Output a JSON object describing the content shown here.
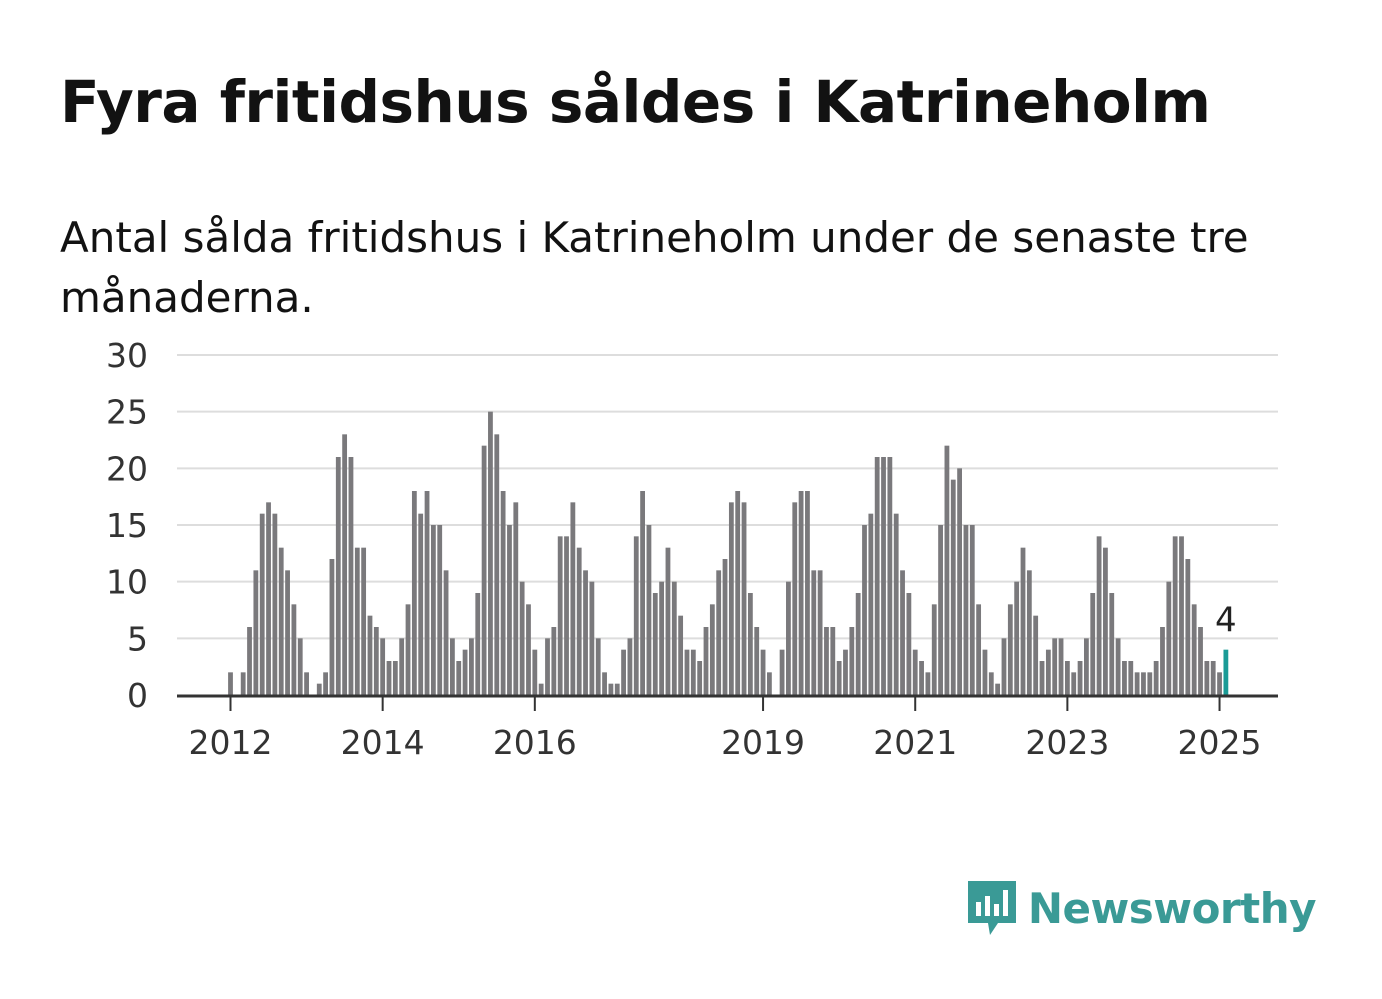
{
  "title": "Fyra fritidshus såldes i Katrineholm",
  "subtitle": "Antal sålda fritidshus i Katrineholm under de senaste tre månaderna.",
  "brand": {
    "name": "Newsworthy",
    "icon": "newsworthy-logo-icon",
    "color": "#3a9a96"
  },
  "chart_data": {
    "type": "bar",
    "title": "",
    "xlabel": "",
    "ylabel": "",
    "ylim": [
      0,
      30
    ],
    "yticks": [
      "0",
      "5",
      "10",
      "15",
      "20",
      "25",
      "30"
    ],
    "xticks": [
      {
        "label": "2012",
        "index": 0
      },
      {
        "label": "2014",
        "index": 24
      },
      {
        "label": "2016",
        "index": 48
      },
      {
        "label": "2019",
        "index": 84
      },
      {
        "label": "2021",
        "index": 108
      },
      {
        "label": "2023",
        "index": 132
      },
      {
        "label": "2025",
        "index": 156
      }
    ],
    "grid": true,
    "legend": "none",
    "bar_color": "#7a797c",
    "highlight_color": "#1a9b96",
    "highlight_label": "4",
    "values": [
      2,
      0,
      2,
      6,
      11,
      16,
      17,
      16,
      13,
      11,
      8,
      5,
      2,
      0,
      1,
      2,
      12,
      21,
      23,
      21,
      13,
      13,
      7,
      6,
      5,
      3,
      3,
      5,
      8,
      18,
      16,
      18,
      15,
      15,
      11,
      5,
      3,
      4,
      5,
      9,
      22,
      25,
      23,
      18,
      15,
      17,
      10,
      8,
      4,
      1,
      5,
      6,
      14,
      14,
      17,
      13,
      11,
      10,
      5,
      2,
      1,
      1,
      4,
      5,
      14,
      18,
      15,
      9,
      10,
      13,
      10,
      7,
      4,
      4,
      3,
      6,
      8,
      11,
      12,
      17,
      18,
      17,
      9,
      6,
      4,
      2,
      0,
      4,
      10,
      17,
      18,
      18,
      11,
      11,
      6,
      6,
      3,
      4,
      6,
      9,
      15,
      16,
      21,
      21,
      21,
      16,
      11,
      9,
      4,
      3,
      2,
      8,
      15,
      22,
      19,
      20,
      15,
      15,
      8,
      4,
      2,
      1,
      5,
      8,
      10,
      13,
      11,
      7,
      3,
      4,
      5,
      5,
      3,
      2,
      3,
      5,
      9,
      14,
      13,
      9,
      5,
      3,
      3,
      2,
      2,
      2,
      3,
      6,
      10,
      14,
      14,
      12,
      8,
      6,
      3,
      3,
      2,
      4
    ]
  }
}
